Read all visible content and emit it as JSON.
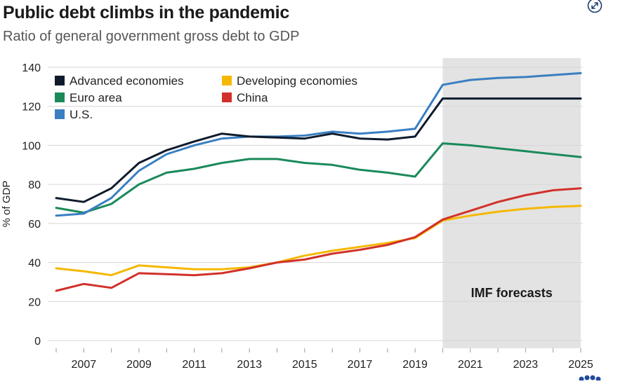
{
  "header": {
    "title": "Public debt climbs in the pandemic",
    "subtitle": "Ratio of general government gross debt to GDP",
    "expand_icon": "expand-arrows-icon"
  },
  "chart_data": {
    "type": "line",
    "title": "Public debt climbs in the pandemic",
    "subtitle": "Ratio of general government gross debt to GDP",
    "xlabel": "",
    "ylabel": "% of GDP",
    "ylim": [
      0,
      140
    ],
    "xlim": [
      2006,
      2025
    ],
    "yticks": [
      0,
      20,
      40,
      60,
      80,
      100,
      120,
      140
    ],
    "xticks": [
      "2007",
      "2009",
      "2011",
      "2013",
      "2015",
      "2017",
      "2019",
      "2021",
      "2023",
      "2025"
    ],
    "grid": true,
    "legend_position": "top-left",
    "forecast_region": {
      "start": 2020,
      "end": 2025,
      "label": "IMF forecasts",
      "color": "#e3e3e3"
    },
    "x": [
      2006,
      2007,
      2008,
      2009,
      2010,
      2011,
      2012,
      2013,
      2014,
      2015,
      2016,
      2017,
      2018,
      2019,
      2020,
      2021,
      2022,
      2023,
      2024,
      2025
    ],
    "series": [
      {
        "name": "Advanced economies",
        "color": "#0f1b2d",
        "values": [
          73,
          71,
          78,
          91,
          97.5,
          102,
          106,
          104.5,
          104,
          103.5,
          106,
          103.5,
          103,
          104.5,
          124,
          124,
          124,
          124,
          124,
          124
        ]
      },
      {
        "name": "Euro area",
        "color": "#1a8a5a",
        "values": [
          68,
          65.5,
          70,
          80,
          86,
          88,
          91,
          93,
          93,
          91,
          90,
          87.5,
          86,
          84,
          101,
          100,
          98.5,
          97,
          95.5,
          94
        ]
      },
      {
        "name": "U.S.",
        "color": "#3a7fc1",
        "values": [
          64,
          65,
          73,
          87,
          95.5,
          100,
          103.5,
          104.5,
          104.5,
          105,
          107,
          106,
          107,
          108.5,
          131,
          133.5,
          134.5,
          135,
          136,
          137
        ]
      },
      {
        "name": "Developing economies",
        "color": "#f5b800",
        "values": [
          37,
          35.5,
          33.5,
          38.5,
          37.5,
          36.5,
          36.5,
          37.5,
          40,
          43.5,
          46,
          48,
          50,
          52.5,
          61.5,
          64,
          66,
          67.5,
          68.5,
          69
        ]
      },
      {
        "name": "China",
        "color": "#d1312a",
        "values": [
          25.5,
          29,
          27,
          34.5,
          34,
          33.5,
          34.5,
          37,
          40,
          41.5,
          44.5,
          46.5,
          49,
          53,
          62,
          66.5,
          71,
          74.5,
          77,
          78
        ]
      }
    ]
  }
}
